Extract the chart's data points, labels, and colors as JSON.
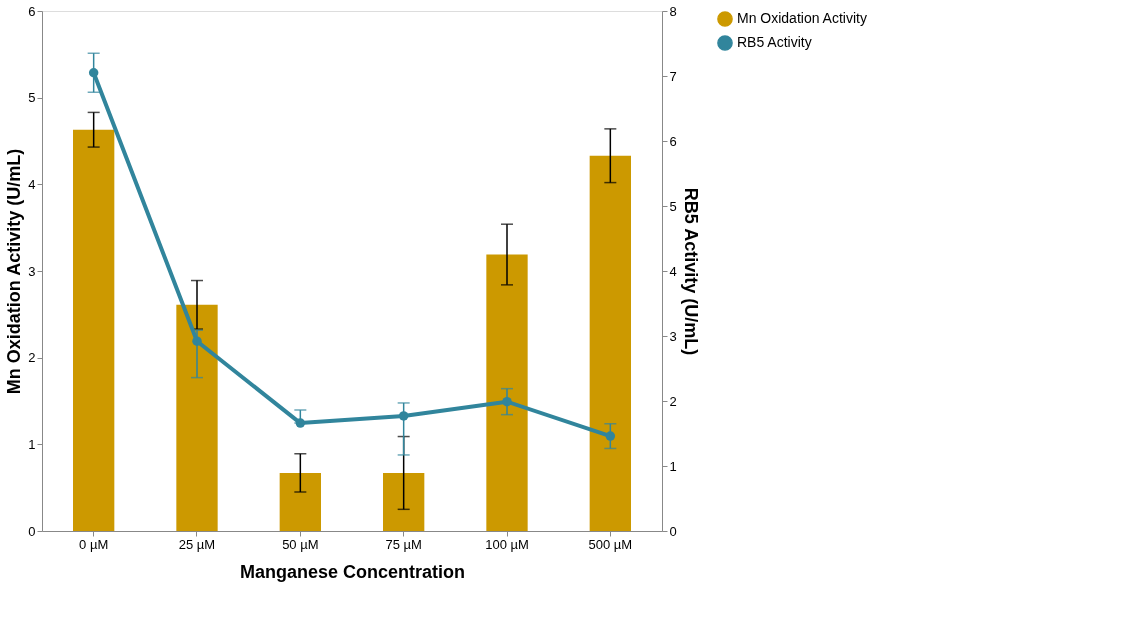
{
  "chart_data": {
    "type": "bar",
    "xlabel": "Manganese Concentration",
    "ylabel": "Mn Oxidation Activity (U/mL)",
    "y2label": "RB5 Activity (U/mL)",
    "categories": [
      "0 µM",
      "25 µM",
      "50 µM",
      "75 µM",
      "100 µM",
      "500 µM"
    ],
    "series": [
      {
        "name": "Mn Oxidation Activity",
        "color": "#cc9900",
        "values": [
          4.63,
          2.61,
          0.67,
          0.67,
          3.19,
          4.33
        ],
        "errors": [
          0.2,
          0.28,
          0.22,
          0.42,
          0.35,
          0.31
        ]
      },
      {
        "name": "RB5 Activity",
        "type": "line",
        "axis": "y2",
        "color": "#31859c",
        "marker": "circle",
        "values": [
          7.05,
          2.92,
          1.66,
          1.77,
          1.99,
          1.46
        ],
        "errors": [
          0.3,
          [
            2.36,
            3.09
          ],
          [
            1.66,
            1.86
          ],
          [
            1.17,
            1.97
          ],
          0.2,
          0.19
        ]
      }
    ],
    "ylim": [
      0,
      6
    ],
    "yticks": [
      0,
      1,
      2,
      3,
      4,
      5,
      6
    ],
    "y2lim": [
      0,
      8
    ],
    "y2ticks": [
      0,
      1,
      2,
      3,
      4,
      5,
      6,
      7,
      8
    ],
    "legend": "right",
    "grid": false
  }
}
